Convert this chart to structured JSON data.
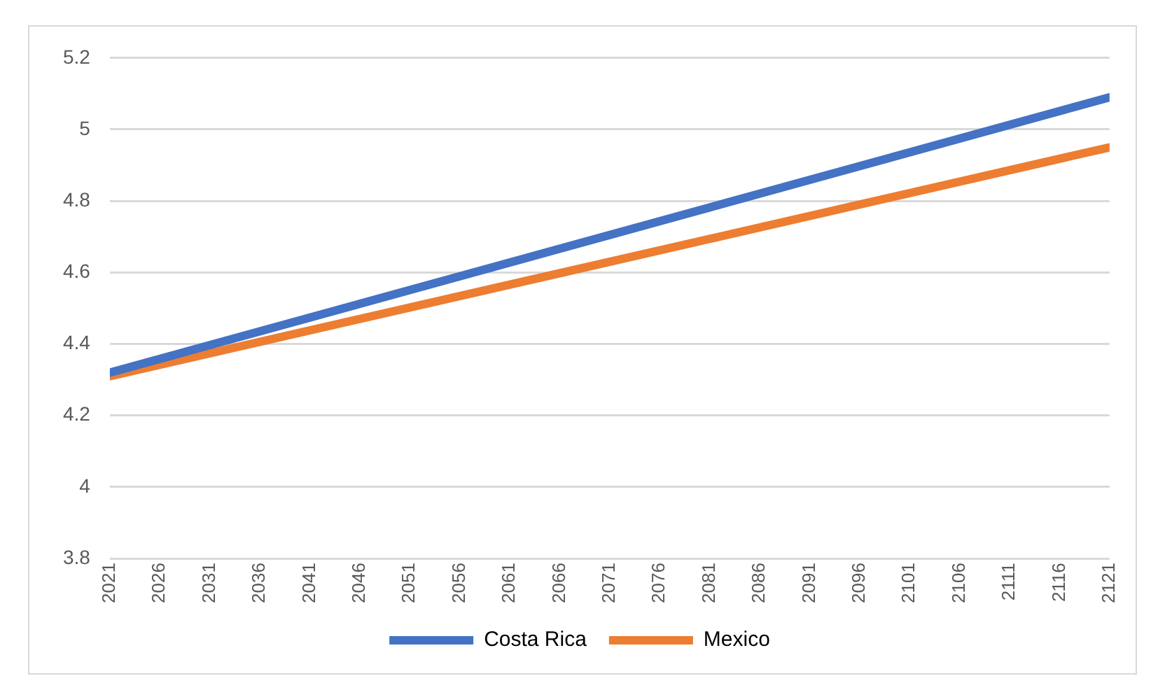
{
  "chart_data": {
    "type": "line",
    "x": [
      2021,
      2121
    ],
    "xlim": [
      2021,
      2121
    ],
    "xticks": [
      2021,
      2026,
      2031,
      2036,
      2041,
      2046,
      2051,
      2056,
      2061,
      2066,
      2071,
      2076,
      2081,
      2086,
      2091,
      2096,
      2101,
      2106,
      2111,
      2116,
      2121
    ],
    "ylim": [
      3.8,
      5.2
    ],
    "yticks": [
      3.8,
      4,
      4.2,
      4.4,
      4.6,
      4.8,
      5,
      5.2
    ],
    "series": [
      {
        "name": "Costa Rica",
        "color": "#4472c4",
        "values": [
          4.32,
          5.09
        ]
      },
      {
        "name": "Mexico",
        "color": "#ed7d31",
        "values": [
          4.31,
          4.95
        ]
      }
    ],
    "grid": "y",
    "legend": "bottom",
    "marker": "none",
    "line_style": "solid"
  }
}
